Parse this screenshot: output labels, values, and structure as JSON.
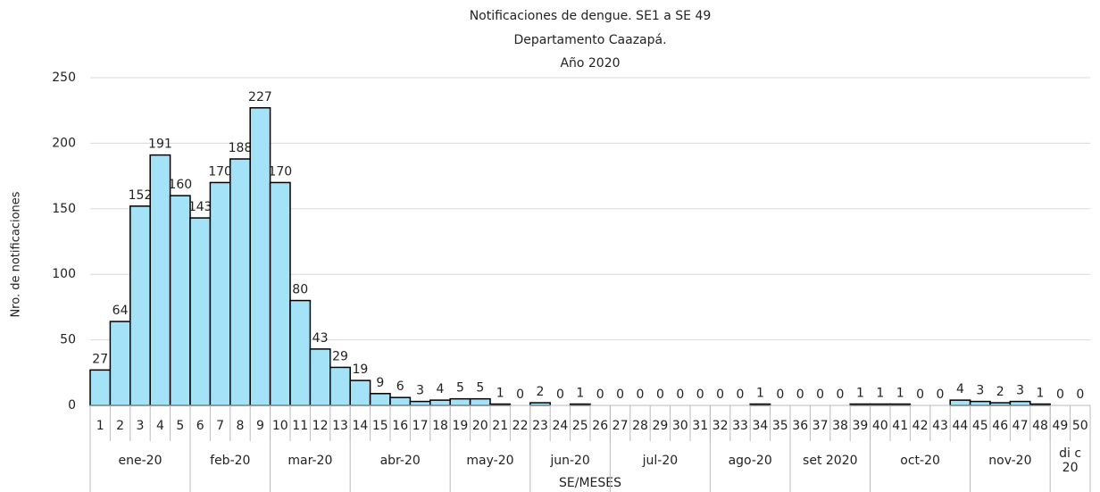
{
  "chart_data": {
    "type": "bar",
    "title": [
      "Notificaciones de dengue. SE1 a SE 49",
      "Departamento Caazapá.",
      "Año 2020"
    ],
    "xlabel": "SE/MESES",
    "ylabel": "Nro. de notificaciones",
    "categories": [
      "1",
      "2",
      "3",
      "4",
      "5",
      "6",
      "7",
      "8",
      "9",
      "10",
      "11",
      "12",
      "13",
      "14",
      "15",
      "16",
      "17",
      "18",
      "19",
      "20",
      "21",
      "22",
      "23",
      "24",
      "25",
      "26",
      "27",
      "28",
      "29",
      "30",
      "31",
      "32",
      "33",
      "34",
      "35",
      "36",
      "37",
      "38",
      "39",
      "40",
      "41",
      "42",
      "43",
      "44",
      "45",
      "46",
      "47",
      "48",
      "49",
      "50"
    ],
    "values": [
      27,
      64,
      152,
      191,
      160,
      143,
      170,
      188,
      227,
      170,
      80,
      43,
      29,
      19,
      9,
      6,
      3,
      4,
      5,
      5,
      1,
      0,
      2,
      0,
      1,
      0,
      0,
      0,
      0,
      0,
      0,
      0,
      0,
      1,
      0,
      0,
      0,
      0,
      1,
      1,
      1,
      0,
      0,
      4,
      3,
      2,
      3,
      1,
      0,
      0
    ],
    "groups": [
      {
        "label": "ene-20",
        "span": 5
      },
      {
        "label": "feb-20",
        "span": 4
      },
      {
        "label": "mar-20",
        "span": 4
      },
      {
        "label": "abr-20",
        "span": 5
      },
      {
        "label": "may-20",
        "span": 4
      },
      {
        "label": "jun-20",
        "span": 4
      },
      {
        "label": "jul-20",
        "span": 5
      },
      {
        "label": "ago-20",
        "span": 4
      },
      {
        "label": "set 2020",
        "span": 4
      },
      {
        "label": "oct-20",
        "span": 5
      },
      {
        "label": "nov-20",
        "span": 4
      },
      {
        "label": "di c 20",
        "span": 2
      }
    ],
    "color": "#a3e2f7",
    "ylim": [
      0,
      250
    ],
    "yticks": [
      0,
      50,
      100,
      150,
      200,
      250
    ],
    "grid": true
  }
}
